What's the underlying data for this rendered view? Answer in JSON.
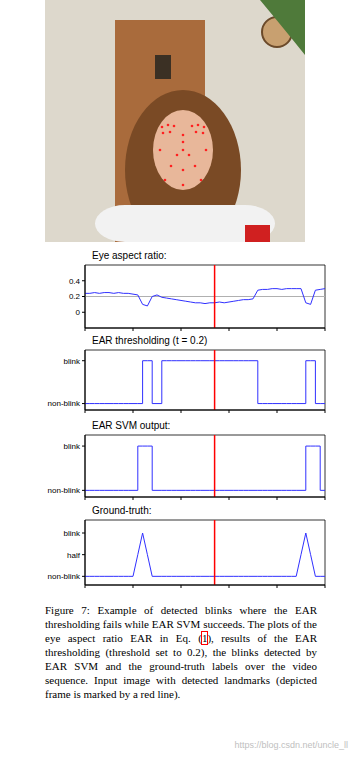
{
  "chart_data": [
    {
      "type": "line",
      "title": "Eye aspect ratio:",
      "x": [
        0,
        2,
        4,
        6,
        8,
        10,
        12,
        14,
        16,
        18,
        20,
        22,
        24,
        26,
        28,
        30,
        32,
        34,
        36,
        38,
        40,
        42,
        44,
        46,
        48,
        50,
        52,
        54,
        56,
        58,
        60,
        62,
        64,
        66,
        68,
        70,
        72,
        74,
        76,
        78,
        80,
        82,
        84,
        86,
        88,
        90,
        92,
        94,
        96,
        98,
        100
      ],
      "values": [
        0.24,
        0.24,
        0.25,
        0.24,
        0.25,
        0.25,
        0.24,
        0.25,
        0.24,
        0.24,
        0.23,
        0.22,
        0.1,
        0.08,
        0.2,
        0.22,
        0.19,
        0.18,
        0.17,
        0.16,
        0.15,
        0.14,
        0.13,
        0.12,
        0.12,
        0.11,
        0.12,
        0.12,
        0.13,
        0.12,
        0.13,
        0.14,
        0.15,
        0.16,
        0.16,
        0.17,
        0.28,
        0.29,
        0.29,
        0.3,
        0.3,
        0.29,
        0.3,
        0.3,
        0.3,
        0.3,
        0.12,
        0.1,
        0.28,
        0.29,
        0.3
      ],
      "color": "#3030ff",
      "threshold": 0.2,
      "current_frame": 54,
      "xlim": [
        0,
        100
      ],
      "xticks": [
        0,
        20,
        40,
        60,
        80,
        100
      ],
      "ylim": [
        -0.2,
        0.6
      ],
      "yticks": [
        0,
        0.2,
        0.4
      ],
      "grid": false,
      "tick_labels": "y"
    },
    {
      "type": "step",
      "title": "EAR thresholding (t = 0.2)",
      "x": [
        0,
        2,
        4,
        6,
        8,
        10,
        12,
        14,
        16,
        18,
        20,
        22,
        24,
        26,
        28,
        30,
        32,
        34,
        36,
        38,
        40,
        42,
        44,
        46,
        48,
        50,
        52,
        54,
        56,
        58,
        60,
        62,
        64,
        66,
        68,
        70,
        72,
        74,
        76,
        78,
        80,
        82,
        84,
        86,
        88,
        90,
        92,
        94,
        96,
        98,
        100
      ],
      "values": [
        0,
        0,
        0,
        0,
        0,
        0,
        0,
        0,
        0,
        0,
        0,
        0,
        1,
        1,
        0,
        0,
        1,
        1,
        1,
        1,
        1,
        1,
        1,
        1,
        1,
        1,
        1,
        1,
        1,
        1,
        1,
        1,
        1,
        1,
        1,
        1,
        0,
        0,
        0,
        0,
        0,
        0,
        0,
        0,
        0,
        0,
        1,
        1,
        0,
        0,
        0
      ],
      "color": "#3030ff",
      "current_frame": 54,
      "xlim": [
        0,
        100
      ],
      "xticks": [
        0,
        20,
        40,
        60,
        80,
        100
      ],
      "ylim": [
        -0.15,
        1.25
      ],
      "yticks": [
        {
          "value": 0,
          "label": "non-blink"
        },
        {
          "value": 1,
          "label": "blink"
        }
      ],
      "grid": false,
      "tick_labels": "y"
    },
    {
      "type": "step",
      "title": "EAR SVM output:",
      "x": [
        0,
        2,
        4,
        6,
        8,
        10,
        12,
        14,
        16,
        18,
        20,
        22,
        24,
        26,
        28,
        30,
        32,
        34,
        36,
        38,
        40,
        42,
        44,
        46,
        48,
        50,
        52,
        54,
        56,
        58,
        60,
        62,
        64,
        66,
        68,
        70,
        72,
        74,
        76,
        78,
        80,
        82,
        84,
        86,
        88,
        90,
        92,
        94,
        96,
        98,
        100
      ],
      "values": [
        0,
        0,
        0,
        0,
        0,
        0,
        0,
        0,
        0,
        0,
        0,
        1,
        1,
        1,
        0,
        0,
        0,
        0,
        0,
        0,
        0,
        0,
        0,
        0,
        0,
        0,
        0,
        0,
        0,
        0,
        0,
        0,
        0,
        0,
        0,
        0,
        0,
        0,
        0,
        0,
        0,
        0,
        0,
        0,
        0,
        0,
        1,
        1,
        1,
        0,
        0
      ],
      "color": "#3030ff",
      "current_frame": 54,
      "xlim": [
        0,
        100
      ],
      "xticks": [
        0,
        20,
        40,
        60,
        80,
        100
      ],
      "ylim": [
        -0.15,
        1.25
      ],
      "yticks": [
        {
          "value": 0,
          "label": "non-blink"
        },
        {
          "value": 1,
          "label": "blink"
        }
      ],
      "grid": false,
      "tick_labels": "y"
    },
    {
      "type": "line",
      "title": "Ground-truth:",
      "x": [
        0,
        2,
        4,
        6,
        8,
        10,
        12,
        14,
        16,
        18,
        20,
        22,
        24,
        26,
        28,
        30,
        32,
        34,
        36,
        38,
        40,
        42,
        44,
        46,
        48,
        50,
        52,
        54,
        56,
        58,
        60,
        62,
        64,
        66,
        68,
        70,
        72,
        74,
        76,
        78,
        80,
        82,
        84,
        86,
        88,
        90,
        92,
        94,
        96,
        98,
        100
      ],
      "values": [
        0,
        0,
        0,
        0,
        0,
        0,
        0,
        0,
        0,
        0,
        0,
        0.5,
        1,
        0.5,
        0,
        0,
        0,
        0,
        0,
        0,
        0,
        0,
        0,
        0,
        0,
        0,
        0,
        0,
        0,
        0,
        0,
        0,
        0,
        0,
        0,
        0,
        0,
        0,
        0,
        0,
        0,
        0,
        0,
        0,
        0,
        0.5,
        1,
        0.5,
        0,
        0,
        0
      ],
      "color": "#3030ff",
      "current_frame": 54,
      "xlim": [
        0,
        100
      ],
      "xticks": [
        0,
        20,
        40,
        60,
        80,
        100
      ],
      "ylim": [
        -0.2,
        1.3
      ],
      "yticks": [
        {
          "value": 0,
          "label": "non-blink"
        },
        {
          "value": 0.5,
          "label": "half"
        },
        {
          "value": 1,
          "label": "blink"
        }
      ],
      "grid": false,
      "tick_labels": "y"
    }
  ],
  "caption": {
    "label": "Figure 7:",
    "text_before": "Example of detected blinks where the EAR thresholding fails while EAR SVM succeeds. The plots of the eye aspect ratio EAR in Eq. (",
    "ref": "1",
    "text_after": "), results of the EAR thresholding (threshold set to 0.2), the blinks detected by EAR SVM and the ground-truth labels over the video sequence. Input image with detected landmarks (depicted frame is marked by a red line)."
  },
  "watermark": "https://blog.csdn.net/uncle_ll"
}
